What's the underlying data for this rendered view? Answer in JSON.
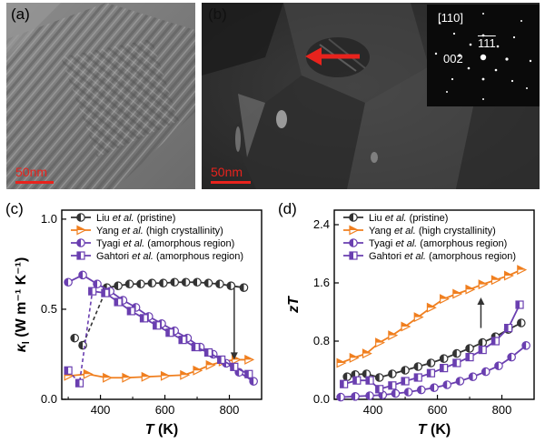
{
  "panels": {
    "a": {
      "label": "(a)",
      "scale": "50nm"
    },
    "b": {
      "label": "(b)",
      "scale": "50nm",
      "diffraction": {
        "zone": "[110]",
        "spot_1": "002",
        "spot_2": "111"
      }
    },
    "c": {
      "label": "(c)"
    },
    "d": {
      "label": "(d)"
    }
  },
  "colors": {
    "black_series": "#333333",
    "orange": "#f07f1f",
    "purple": "#6a3fb0",
    "arrow_red": "#e8231d"
  },
  "chart_data": [
    {
      "type": "line",
      "panel": "c",
      "xlabel_main": "T",
      "xlabel_unit": "(K)",
      "ylabel_symbol": "κ",
      "ylabel_sub": "l",
      "ylabel_unit": "(W m⁻¹ K⁻¹)",
      "xlim": [
        280,
        900
      ],
      "ylim": [
        0,
        1.05
      ],
      "xticks": [
        400,
        600,
        800
      ],
      "xticklabels": [
        "400",
        "600",
        "800"
      ],
      "yticks": [
        0,
        0.5,
        1.0
      ],
      "yticklabels": [
        "0.0",
        "0.5",
        "1.0"
      ],
      "legend": [
        "Liu et al. (pristine)",
        "Yang et al. (high crystallinity)",
        "Tyagi et al. (amorphous region)",
        "Gahtori et al. (amorphous region)"
      ],
      "series": [
        {
          "name": "Liu et al. (pristine)",
          "color": "#333333",
          "marker": "circle-half",
          "x": [
            320,
            345,
            420,
            455,
            490,
            525,
            560,
            595,
            630,
            665,
            700,
            735,
            770,
            805,
            845
          ],
          "y": [
            0.34,
            0.3,
            0.62,
            0.63,
            0.64,
            0.64,
            0.645,
            0.645,
            0.65,
            0.65,
            0.65,
            0.645,
            0.64,
            0.63,
            0.62
          ],
          "dashed_until": 2
        },
        {
          "name": "Yang et al. (high crystallinity)",
          "color": "#f07f1f",
          "marker": "triangle-right",
          "x": [
            300,
            360,
            420,
            480,
            540,
            600,
            660,
            700,
            740,
            780,
            820,
            860
          ],
          "y": [
            0.13,
            0.14,
            0.12,
            0.12,
            0.125,
            0.13,
            0.135,
            0.16,
            0.19,
            0.21,
            0.22,
            0.22
          ]
        },
        {
          "name": "Tyagi et al. (amorphous region)",
          "color": "#6a3fb0",
          "marker": "circle-half",
          "x": [
            300,
            345,
            390,
            430,
            470,
            510,
            550,
            590,
            630,
            670,
            710,
            750,
            790,
            830,
            875
          ],
          "y": [
            0.65,
            0.69,
            0.64,
            0.6,
            0.55,
            0.51,
            0.46,
            0.42,
            0.38,
            0.34,
            0.29,
            0.25,
            0.2,
            0.15,
            0.1
          ]
        },
        {
          "name": "Gahtori et al. (amorphous region)",
          "color": "#6a3fb0",
          "marker": "square-half",
          "x": [
            300,
            335,
            375,
            415,
            455,
            495,
            535,
            575,
            615,
            655,
            695,
            735,
            775,
            815,
            860
          ],
          "y": [
            0.16,
            0.09,
            0.6,
            0.59,
            0.54,
            0.49,
            0.45,
            0.41,
            0.37,
            0.33,
            0.29,
            0.26,
            0.22,
            0.18,
            0.14
          ],
          "dashed_until": 2
        }
      ],
      "arrow": {
        "x": 815,
        "y_from": 0.62,
        "y_to": 0.22
      }
    },
    {
      "type": "line",
      "panel": "d",
      "xlabel_main": "T",
      "xlabel_unit": "(K)",
      "ylabel_symbol": "zT",
      "xlim": [
        280,
        900
      ],
      "ylim": [
        0,
        2.6
      ],
      "xticks": [
        400,
        600,
        800
      ],
      "xticklabels": [
        "400",
        "600",
        "800"
      ],
      "yticks": [
        0,
        0.8,
        1.6,
        2.4
      ],
      "yticklabels": [
        "0.0",
        "0.8",
        "1.6",
        "2.4"
      ],
      "legend": [
        "Liu et al. (pristine)",
        "Yang et al. (high crystallinity)",
        "Tyagi et al. (amorphous region)",
        "Gahtori et al. (amorphous region)"
      ],
      "series": [
        {
          "name": "Liu et al. (pristine)",
          "color": "#333333",
          "marker": "circle-half",
          "x": [
            320,
            345,
            380,
            420,
            460,
            500,
            540,
            580,
            620,
            660,
            700,
            740,
            780,
            820,
            860
          ],
          "y": [
            0.31,
            0.34,
            0.35,
            0.3,
            0.35,
            0.4,
            0.45,
            0.5,
            0.56,
            0.63,
            0.7,
            0.78,
            0.86,
            0.96,
            1.05
          ]
        },
        {
          "name": "Yang et al. (high crystallinity)",
          "color": "#f07f1f",
          "marker": "triangle-right",
          "x": [
            300,
            340,
            380,
            420,
            460,
            500,
            540,
            580,
            620,
            660,
            700,
            740,
            780,
            820,
            860
          ],
          "y": [
            0.5,
            0.57,
            0.63,
            0.78,
            0.88,
            1.0,
            1.13,
            1.26,
            1.38,
            1.45,
            1.51,
            1.58,
            1.64,
            1.7,
            1.78
          ]
        },
        {
          "name": "Tyagi et al. (amorphous region)",
          "color": "#6a3fb0",
          "marker": "circle-half",
          "x": [
            300,
            345,
            390,
            430,
            470,
            510,
            550,
            590,
            630,
            670,
            710,
            750,
            790,
            830,
            875
          ],
          "y": [
            0.03,
            0.04,
            0.05,
            0.06,
            0.08,
            0.1,
            0.13,
            0.16,
            0.2,
            0.25,
            0.31,
            0.38,
            0.46,
            0.58,
            0.74
          ]
        },
        {
          "name": "Gahtori et al. (amorphous region)",
          "color": "#6a3fb0",
          "marker": "square-half",
          "x": [
            310,
            350,
            390,
            420,
            460,
            500,
            540,
            580,
            620,
            660,
            700,
            740,
            780,
            820,
            855
          ],
          "y": [
            0.21,
            0.26,
            0.26,
            0.14,
            0.19,
            0.25,
            0.3,
            0.36,
            0.43,
            0.5,
            0.58,
            0.68,
            0.8,
            0.98,
            1.3
          ]
        }
      ],
      "arrow": {
        "x": 735,
        "y_from": 0.98,
        "y_to": 1.4
      }
    }
  ]
}
